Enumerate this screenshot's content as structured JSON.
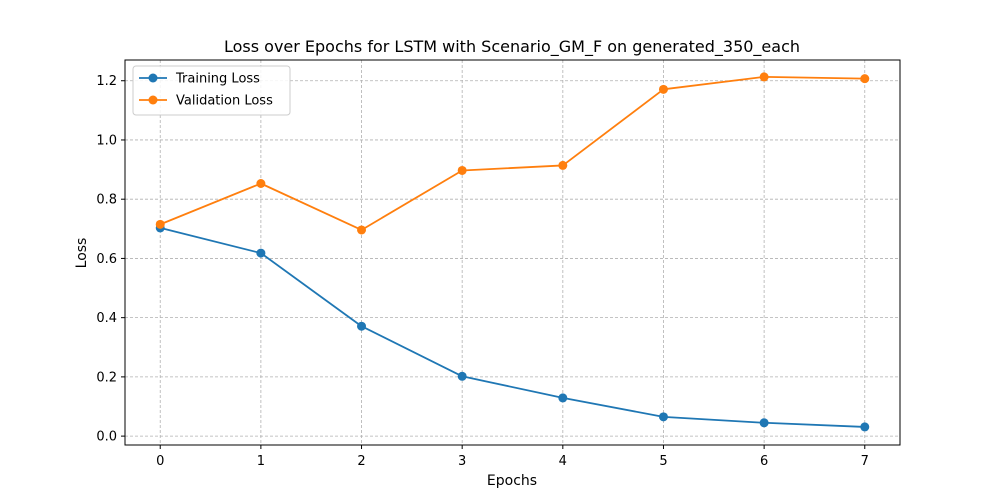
{
  "chart_data": {
    "type": "line",
    "title": "Loss over Epochs for LSTM with Scenario_GM_F on generated_350_each",
    "xlabel": "Epochs",
    "ylabel": "Loss",
    "x": [
      0,
      1,
      2,
      3,
      4,
      5,
      6,
      7
    ],
    "xlim": [
      -0.35,
      7.35
    ],
    "ylim": [
      -0.03,
      1.27
    ],
    "x_ticks": [
      "0",
      "1",
      "2",
      "3",
      "4",
      "5",
      "6",
      "7"
    ],
    "y_ticks": [
      "0.0",
      "0.2",
      "0.4",
      "0.6",
      "0.8",
      "1.0",
      "1.2"
    ],
    "grid": true,
    "legend_position": "top-left",
    "series": [
      {
        "name": "Training Loss",
        "color": "#1f77b4",
        "marker": "circle",
        "values": [
          0.703,
          0.618,
          0.371,
          0.202,
          0.129,
          0.065,
          0.045,
          0.031
        ]
      },
      {
        "name": "Validation Loss",
        "color": "#ff7f0e",
        "marker": "circle",
        "values": [
          0.715,
          0.853,
          0.696,
          0.897,
          0.914,
          1.171,
          1.213,
          1.207
        ]
      }
    ]
  }
}
